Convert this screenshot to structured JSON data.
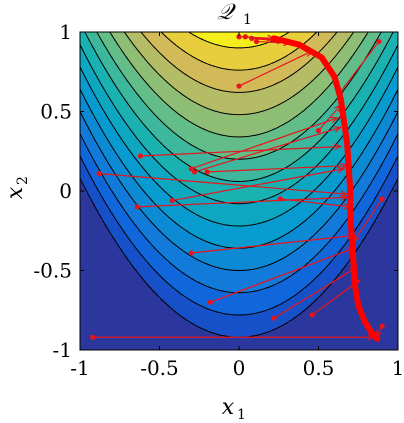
{
  "chart_data": {
    "type": "contour",
    "title": "𝒬₁",
    "title_main": "𝒬",
    "title_sub": "1",
    "xlabel_main": "x",
    "xlabel_sub": "1",
    "ylabel_main": "x",
    "ylabel_sub": "2",
    "xlim": [
      -1,
      1
    ],
    "ylim": [
      -1,
      1
    ],
    "xticks": [
      -1,
      -0.5,
      0,
      0.5,
      1
    ],
    "yticks": [
      -1,
      -0.5,
      0,
      0.5,
      1
    ],
    "xtick_labels": [
      "-1",
      "-0.5",
      "0",
      "0.5",
      "1"
    ],
    "ytick_labels": [
      "-1",
      "-0.5",
      "0",
      "0.5",
      "1"
    ],
    "colormap": "parula",
    "contour_levels": [
      -0.92,
      -0.78,
      -0.64,
      -0.5,
      -0.36,
      -0.22,
      -0.08,
      0.06,
      0.2,
      0.34,
      0.48,
      0.62,
      0.76,
      0.9
    ],
    "contour_line_color": "#000000",
    "arrow_color": "#e8141b",
    "path_color": "#ff0000",
    "path": [
      [
        0.22,
        0.96
      ],
      [
        0.38,
        0.92
      ],
      [
        0.52,
        0.84
      ],
      [
        0.6,
        0.72
      ],
      [
        0.64,
        0.58
      ],
      [
        0.66,
        0.44
      ],
      [
        0.68,
        0.3
      ],
      [
        0.69,
        0.15
      ],
      [
        0.7,
        0.0
      ],
      [
        0.7,
        -0.15
      ],
      [
        0.71,
        -0.3
      ],
      [
        0.72,
        -0.45
      ],
      [
        0.73,
        -0.6
      ],
      [
        0.75,
        -0.72
      ],
      [
        0.79,
        -0.82
      ],
      [
        0.84,
        -0.9
      ],
      [
        0.87,
        -0.93
      ]
    ],
    "arrows": [
      {
        "from": [
          0.0,
          0.97
        ],
        "to": [
          0.22,
          0.96
        ]
      },
      {
        "from": [
          0.04,
          0.97
        ],
        "to": [
          0.25,
          0.95
        ]
      },
      {
        "from": [
          0.08,
          0.96
        ],
        "to": [
          0.28,
          0.94
        ]
      },
      {
        "from": [
          0.11,
          0.94
        ],
        "to": [
          0.32,
          0.93
        ]
      },
      {
        "from": [
          0.0,
          0.66
        ],
        "to": [
          0.46,
          0.88
        ]
      },
      {
        "from": [
          0.88,
          0.94
        ],
        "to": [
          0.62,
          0.6
        ]
      },
      {
        "from": [
          0.5,
          0.38
        ],
        "to": [
          0.64,
          0.54
        ]
      },
      {
        "from": [
          -0.62,
          0.22
        ],
        "to": [
          0.64,
          0.28
        ]
      },
      {
        "from": [
          -0.3,
          0.14
        ],
        "to": [
          0.62,
          0.46
        ]
      },
      {
        "from": [
          -0.28,
          0.12
        ],
        "to": [
          0.64,
          0.4
        ]
      },
      {
        "from": [
          -0.2,
          0.12
        ],
        "to": [
          0.68,
          0.16
        ]
      },
      {
        "from": [
          -0.88,
          0.11
        ],
        "to": [
          0.68,
          -0.02
        ]
      },
      {
        "from": [
          -0.42,
          -0.06
        ],
        "to": [
          0.66,
          0.14
        ]
      },
      {
        "from": [
          -0.64,
          -0.1
        ],
        "to": [
          0.68,
          -0.04
        ]
      },
      {
        "from": [
          0.26,
          -0.05
        ],
        "to": [
          0.7,
          -0.1
        ]
      },
      {
        "from": [
          -0.3,
          -0.39
        ],
        "to": [
          0.72,
          -0.28
        ]
      },
      {
        "from": [
          0.9,
          -0.05
        ],
        "to": [
          0.72,
          -0.32
        ]
      },
      {
        "from": [
          -0.18,
          -0.7
        ],
        "to": [
          0.72,
          -0.36
        ]
      },
      {
        "from": [
          0.22,
          -0.8
        ],
        "to": [
          0.74,
          -0.48
        ]
      },
      {
        "from": [
          0.46,
          -0.78
        ],
        "to": [
          0.76,
          -0.56
        ]
      },
      {
        "from": [
          -0.92,
          -0.92
        ],
        "to": [
          0.85,
          -0.92
        ]
      },
      {
        "from": [
          0.9,
          -0.85
        ],
        "to": [
          0.86,
          -0.92
        ]
      }
    ]
  }
}
